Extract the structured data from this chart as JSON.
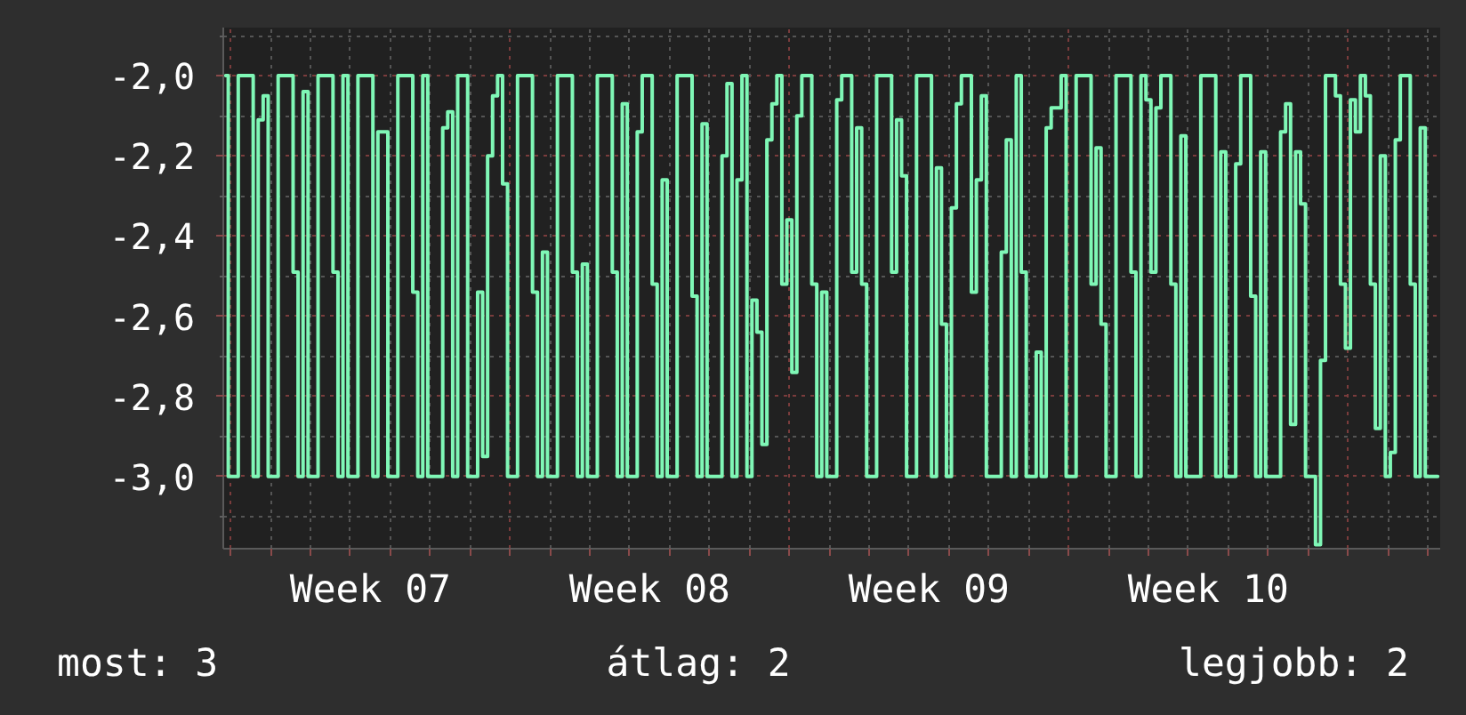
{
  "chart_data": {
    "type": "step",
    "categories": [
      null,
      null,
      null,
      null,
      null,
      null,
      null,
      null,
      null,
      null,
      null,
      null,
      null,
      null,
      null,
      null,
      null,
      null,
      null,
      null,
      null,
      null,
      null,
      null,
      null,
      null,
      null,
      null,
      null,
      "Week 07",
      null,
      null,
      null,
      null,
      null,
      null,
      null,
      null,
      null,
      null,
      null,
      null,
      null,
      null,
      null,
      null,
      null,
      null,
      null,
      null,
      null,
      null,
      null,
      null,
      null,
      null,
      null,
      null,
      null,
      null,
      null,
      null,
      null,
      null,
      null,
      null,
      null,
      null,
      null,
      null,
      null,
      null,
      null,
      null,
      null,
      null,
      null,
      null,
      null,
      null,
      null,
      null,
      null,
      null,
      null,
      "Week 08",
      null,
      null,
      null,
      null,
      null,
      null,
      null,
      null,
      null,
      null,
      null,
      null,
      null,
      null,
      null,
      null,
      null,
      null,
      null,
      null,
      null,
      null,
      null,
      null,
      null,
      null,
      null,
      null,
      null,
      null,
      null,
      null,
      null,
      null,
      null,
      null,
      null,
      null,
      null,
      null,
      null,
      null,
      null,
      null,
      null,
      null,
      null,
      null,
      null,
      null,
      null,
      null,
      null,
      null,
      null,
      "Week 09",
      null,
      null,
      null,
      null,
      null,
      null,
      null,
      null,
      null,
      null,
      null,
      null,
      null,
      null,
      null,
      null,
      null,
      null,
      null,
      null,
      null,
      null,
      null,
      null,
      null,
      null,
      null,
      null,
      null,
      null,
      null,
      null,
      null,
      null,
      null,
      null,
      null,
      null,
      null,
      null,
      null,
      null,
      null,
      null,
      null,
      null,
      null,
      null,
      null,
      null,
      null,
      null,
      null,
      null,
      null,
      "Week 10",
      null,
      null,
      null,
      null,
      null,
      null,
      null,
      null,
      null,
      null,
      null,
      null,
      null,
      null,
      null,
      null,
      null,
      null,
      null,
      null,
      null,
      null,
      null,
      null,
      null,
      null,
      null,
      null,
      null,
      null,
      null,
      null,
      null,
      null,
      null,
      null,
      null,
      null,
      null,
      null,
      null,
      null,
      null,
      null,
      null,
      null
    ],
    "series": [
      {
        "color": "#7ff7b6",
        "values": [
          -2.0,
          -3.0,
          -3.0,
          -2.0,
          -2.0,
          -2.0,
          -3.0,
          -2.11,
          -2.05,
          -3.0,
          -3.0,
          -2.0,
          -2.0,
          -2.0,
          -2.49,
          -3.0,
          -2.04,
          -3.0,
          -3.0,
          -2.0,
          -2.0,
          -2.0,
          -2.49,
          -3.0,
          -2.0,
          -3.0,
          -3.0,
          -2.0,
          -2.0,
          -2.0,
          -3.0,
          -2.14,
          -2.14,
          -3.0,
          -3.0,
          -2.0,
          -2.0,
          -2.0,
          -2.54,
          -3.0,
          -2.0,
          -3.0,
          -3.0,
          -3.0,
          -2.13,
          -2.09,
          -3.0,
          -2.0,
          -2.0,
          -3.0,
          -3.0,
          -2.54,
          -2.95,
          -2.2,
          -2.05,
          -2.0,
          -2.27,
          -3.0,
          -3.0,
          -2.0,
          -2.0,
          -2.0,
          -2.54,
          -3.0,
          -2.44,
          -3.0,
          -3.0,
          -2.0,
          -2.0,
          -2.0,
          -2.49,
          -3.0,
          -2.47,
          -3.0,
          -3.0,
          -2.0,
          -2.0,
          -2.0,
          -2.49,
          -3.0,
          -2.07,
          -3.0,
          -3.0,
          -2.14,
          -2.0,
          -2.0,
          -2.52,
          -3.0,
          -2.26,
          -3.0,
          -3.0,
          -2.0,
          -2.0,
          -2.0,
          -2.55,
          -3.0,
          -2.12,
          -3.0,
          -3.0,
          -3.0,
          -2.2,
          -2.02,
          -3.0,
          -2.26,
          -2.0,
          -3.0,
          -2.56,
          -2.64,
          -2.92,
          -2.16,
          -2.07,
          -2.0,
          -2.52,
          -2.36,
          -2.74,
          -2.1,
          -2.0,
          -2.0,
          -2.52,
          -3.0,
          -2.54,
          -3.0,
          -3.0,
          -2.06,
          -2.0,
          -2.0,
          -2.49,
          -2.13,
          -2.52,
          -3.0,
          -3.0,
          -2.0,
          -2.0,
          -2.0,
          -2.49,
          -2.11,
          -2.25,
          -3.0,
          -3.0,
          -2.0,
          -2.0,
          -2.0,
          -3.0,
          -2.23,
          -2.62,
          -3.0,
          -2.33,
          -2.07,
          -2.0,
          -2.0,
          -2.54,
          -2.26,
          -2.05,
          -3.0,
          -3.0,
          -3.0,
          -2.44,
          -2.16,
          -3.0,
          -2.0,
          -2.49,
          -3.0,
          -3.0,
          -2.69,
          -3.0,
          -2.13,
          -2.08,
          -2.08,
          -2.0,
          -3.0,
          -3.0,
          -2.0,
          -2.0,
          -2.0,
          -2.52,
          -2.18,
          -2.62,
          -3.0,
          -3.0,
          -2.0,
          -2.0,
          -2.0,
          -2.49,
          -3.0,
          -2.0,
          -2.06,
          -2.49,
          -2.08,
          -2.0,
          -2.0,
          -2.52,
          -3.0,
          -2.15,
          -3.0,
          -3.0,
          -3.0,
          -2.0,
          -2.0,
          -2.0,
          -3.0,
          -2.19,
          -3.0,
          -3.0,
          -2.22,
          -2.0,
          -2.0,
          -2.55,
          -3.0,
          -2.19,
          -3.0,
          -3.0,
          -3.0,
          -2.14,
          -2.07,
          -2.87,
          -2.19,
          -2.32,
          -3.0,
          -3.0,
          -3.17,
          -2.71,
          -2.0,
          -2.0,
          -2.05,
          -2.52,
          -2.68,
          -2.06,
          -2.14,
          -2.0,
          -2.05,
          -2.52,
          -2.88,
          -2.2,
          -3.0,
          -2.94,
          -2.16,
          -2.0,
          -2.0,
          -2.52,
          -3.0,
          -2.13,
          -3.0,
          -3.0,
          -3.0
        ]
      }
    ],
    "ylim": [
      -3.18,
      -1.88
    ],
    "yticks": [
      {
        "value": -1.9,
        "label": null
      },
      {
        "value": -2.0,
        "label": "-2,0"
      },
      {
        "value": -2.1,
        "label": null
      },
      {
        "value": -2.2,
        "label": "-2,2"
      },
      {
        "value": -2.3,
        "label": null
      },
      {
        "value": -2.4,
        "label": "-2,4"
      },
      {
        "value": -2.5,
        "label": null
      },
      {
        "value": -2.6,
        "label": "-2,6"
      },
      {
        "value": -2.7,
        "label": null
      },
      {
        "value": -2.8,
        "label": "-2,8"
      },
      {
        "value": -2.9,
        "label": null
      },
      {
        "value": -3.0,
        "label": "-3,0"
      },
      {
        "value": -3.1,
        "label": null
      }
    ],
    "grid": true,
    "annotations": [
      "most: 3",
      "átlag: 2",
      "legjobb: 2"
    ]
  }
}
